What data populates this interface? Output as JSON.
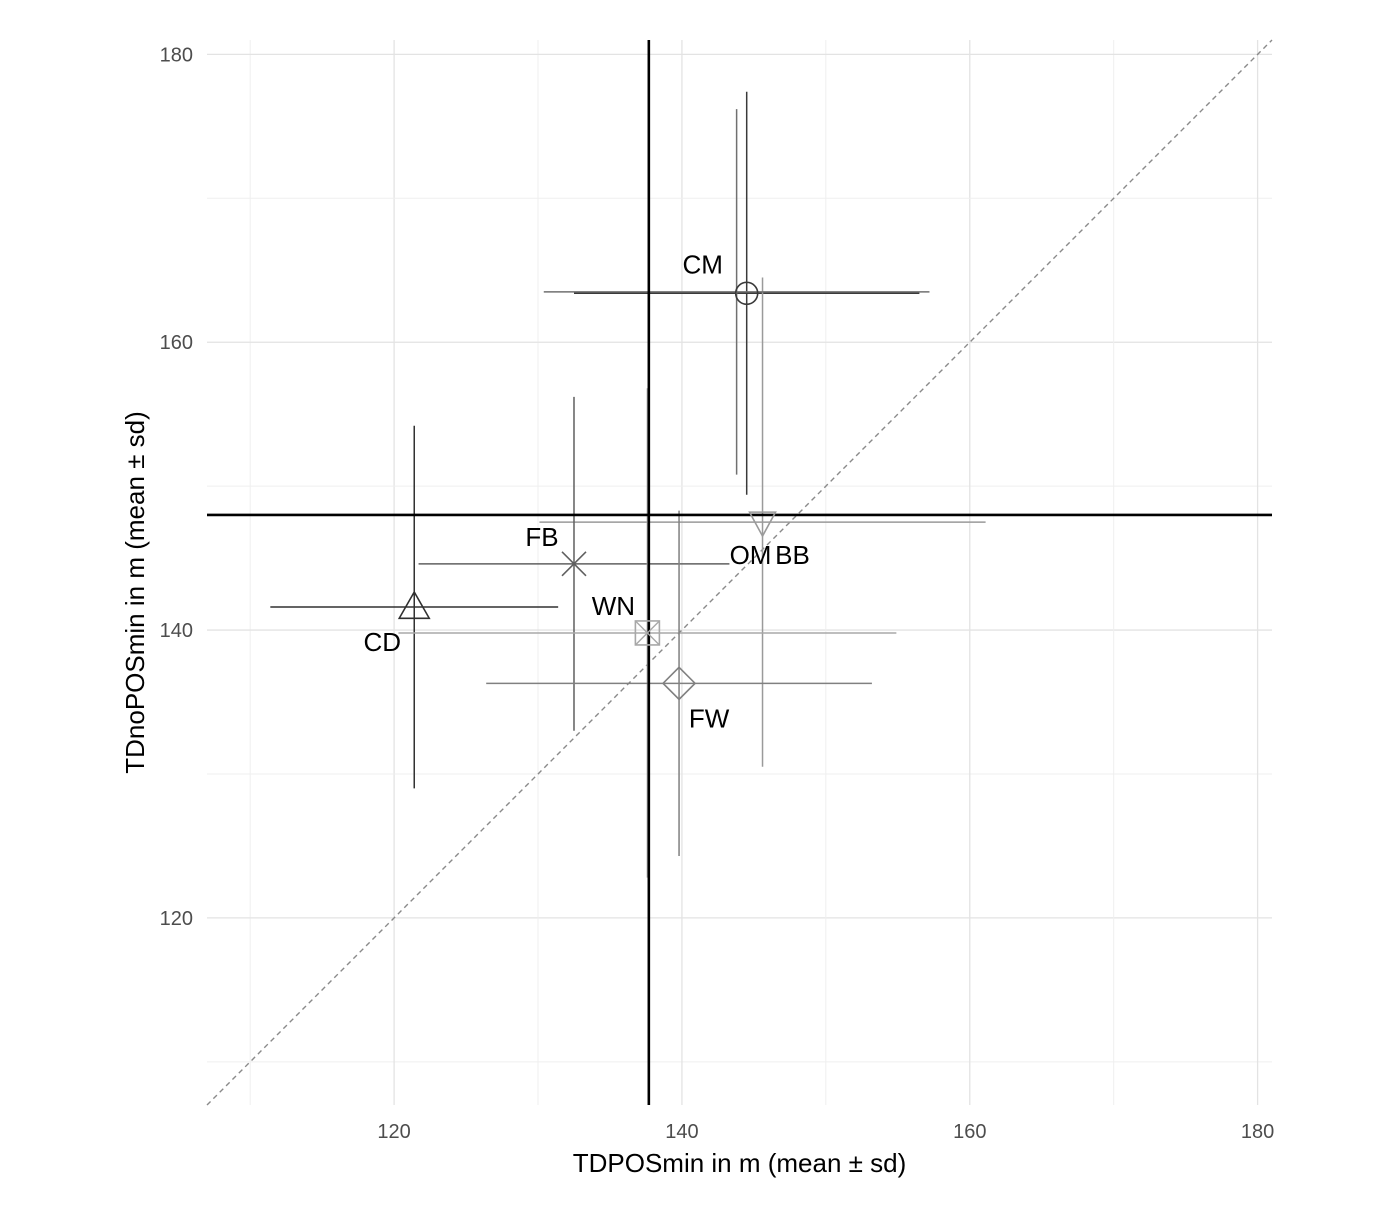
{
  "chart_data": {
    "type": "scatter",
    "title": "",
    "xlabel": "TDPOSmin in m (mean ± sd)",
    "ylabel": "TDnoPOSmin in m (mean ± sd)",
    "xlim": [
      107,
      181
    ],
    "ylim": [
      107,
      181
    ],
    "x_ticks": [
      120,
      140,
      160,
      180
    ],
    "y_ticks": [
      120,
      140,
      160,
      180
    ],
    "grid": true,
    "legend": "none",
    "identity_line": true,
    "reference_lines": {
      "vertical_x": 137.7,
      "horizontal_y": 148.0
    },
    "points": [
      {
        "label": "CM",
        "shape": "circle",
        "x": 144.5,
        "y": 163.4,
        "xerr": 12.0,
        "yerr": 14.0,
        "color": "#3a3a3a"
      },
      {
        "label": "BB",
        "shape": "triangle-down",
        "x": 145.6,
        "y": 147.5,
        "xerr": 15.5,
        "yerr": 17.0,
        "color": "#9a9a9a"
      },
      {
        "label": "OM",
        "shape": "triangle-down",
        "x": 145.6,
        "y": 147.5,
        "xerr": 15.5,
        "yerr": 17.0,
        "color": "#9a9a9a"
      },
      {
        "label": "FB",
        "shape": "cross",
        "x": 132.5,
        "y": 144.6,
        "xerr": 10.8,
        "yerr": 11.6,
        "color": "#606060"
      },
      {
        "label": "CD",
        "shape": "triangle-up",
        "x": 121.4,
        "y": 141.6,
        "xerr": 10.0,
        "yerr": 12.6,
        "color": "#303030"
      },
      {
        "label": "WN",
        "shape": "square-x",
        "x": 137.6,
        "y": 139.8,
        "xerr": 17.3,
        "yerr": 17.0,
        "color": "#a8a8a8"
      },
      {
        "label": "FW",
        "shape": "diamond",
        "x": 139.8,
        "y": 136.3,
        "xerr": 13.4,
        "yerr": 12.0,
        "color": "#808080"
      }
    ],
    "extra_bars": [
      {
        "x": 143.8,
        "y": 163.5,
        "xerr": 13.4,
        "yerr": 12.7,
        "color": "#707070"
      }
    ]
  }
}
